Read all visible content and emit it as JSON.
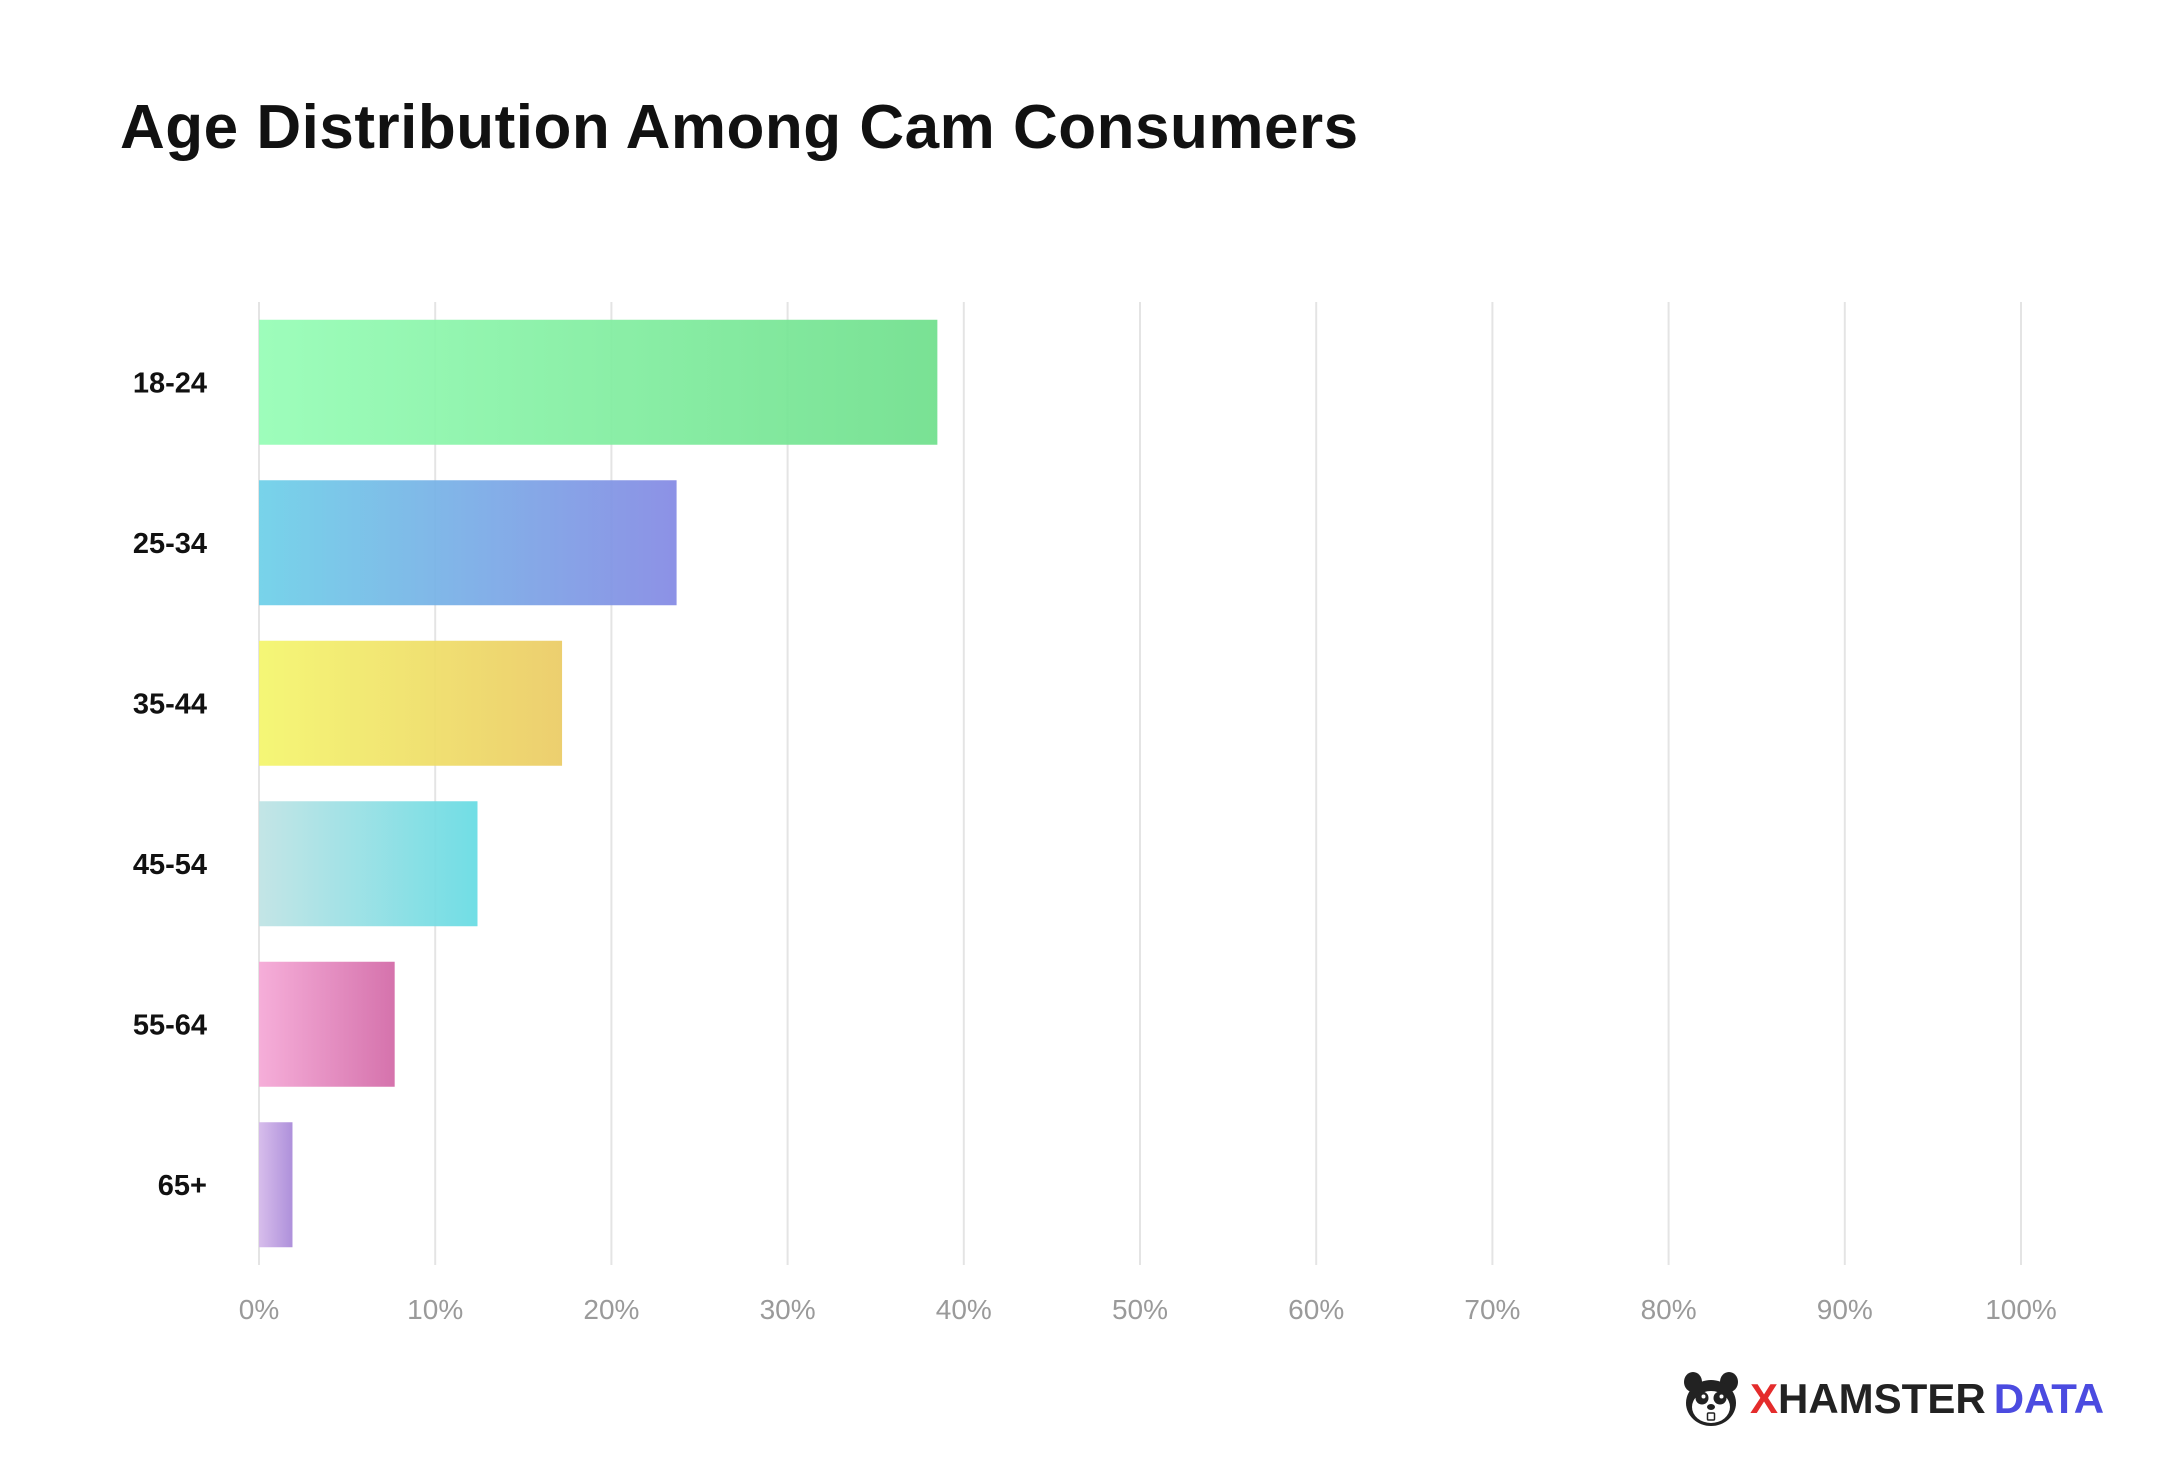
{
  "chart_data": {
    "type": "bar",
    "orientation": "horizontal",
    "title": "Age Distribution Among Cam Consumers",
    "categories": [
      "18-24",
      "25-34",
      "35-44",
      "45-54",
      "55-64",
      "65+"
    ],
    "values": [
      38.5,
      23.7,
      17.2,
      12.4,
      7.7,
      1.9
    ],
    "xlim": [
      0,
      100
    ],
    "x_ticks": [
      0,
      10,
      20,
      30,
      40,
      50,
      60,
      70,
      80,
      90,
      100
    ],
    "x_tick_labels": [
      "0%",
      "10%",
      "20%",
      "30%",
      "40%",
      "50%",
      "60%",
      "70%",
      "80%",
      "90%",
      "100%"
    ],
    "grid": "vertical",
    "bar_colors": [
      [
        "#96fdb6",
        "#6fdf8c"
      ],
      [
        "#6dd0e8",
        "#8489e4"
      ],
      [
        "#f4f66c",
        "#ebcb64"
      ],
      [
        "#bfe3e4",
        "#66dbe3"
      ],
      [
        "#f5a8d6",
        "#d268a6"
      ],
      [
        "#d4b8ea",
        "#a888d8"
      ]
    ]
  },
  "branding": {
    "x_letter": "X",
    "name": "HAMSTER",
    "suffix": "DATA",
    "x_color": "#e42c2c",
    "name_color": "#222222",
    "suffix_color": "#4b4be0",
    "logo_icon": "hamster-face-icon"
  }
}
